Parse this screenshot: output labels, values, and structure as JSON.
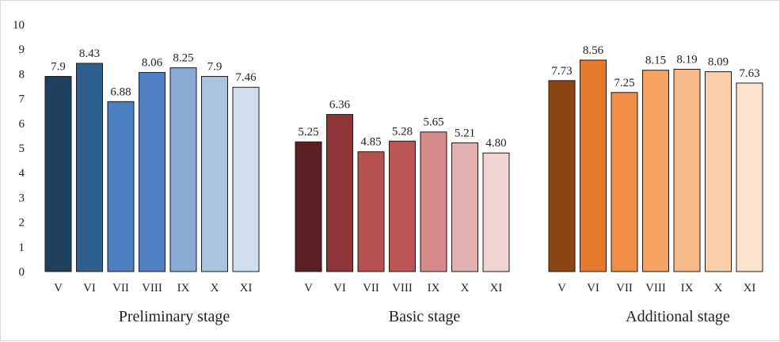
{
  "chart_data": {
    "type": "bar",
    "title": "",
    "xlabel": "",
    "ylabel": "",
    "ylim": [
      0,
      10
    ],
    "yticks": [
      0,
      1,
      2,
      3,
      4,
      5,
      6,
      7,
      8,
      9,
      10
    ],
    "grid": false,
    "legend": "none",
    "groups": [
      {
        "name": "Preliminary stage",
        "categories": [
          "V",
          "VI",
          "VII",
          "VIII",
          "IX",
          "X",
          "XI"
        ],
        "values": [
          7.9,
          8.43,
          6.88,
          8.06,
          8.25,
          7.9,
          7.46
        ],
        "value_labels": [
          "7.9",
          "8.43",
          "6.88",
          "8.06",
          "8.25",
          "7.9",
          "7.46"
        ],
        "colors": [
          "#1f3f60",
          "#2e5f8f",
          "#4a7fc0",
          "#5181c2",
          "#87abd3",
          "#a9c4e0",
          "#cfdfee"
        ]
      },
      {
        "name": "Basic stage",
        "categories": [
          "V",
          "VI",
          "VII",
          "VIII",
          "IX",
          "X",
          "XI"
        ],
        "values": [
          5.25,
          6.36,
          4.85,
          5.28,
          5.65,
          5.21,
          4.8
        ],
        "value_labels": [
          "5.25",
          "6.36",
          "4.85",
          "5.28",
          "5.65",
          "5.21",
          "4.80"
        ],
        "colors": [
          "#5b1f22",
          "#8e3538",
          "#b85250",
          "#bc5654",
          "#d48b8a",
          "#e2b0ae",
          "#f1d3d2"
        ]
      },
      {
        "name": "Additional stage",
        "categories": [
          "V",
          "VI",
          "VII",
          "VIII",
          "IX",
          "X",
          "XI"
        ],
        "values": [
          7.73,
          8.56,
          7.25,
          8.15,
          8.19,
          8.09,
          7.63
        ],
        "value_labels": [
          "7.73",
          "8.56",
          "7.25",
          "8.15",
          "8.19",
          "8.09",
          "7.63"
        ],
        "colors": [
          "#8a4413",
          "#e57a2d",
          "#f28e48",
          "#f5a363",
          "#f8b98a",
          "#fbcea9",
          "#fde3cc"
        ]
      }
    ]
  }
}
